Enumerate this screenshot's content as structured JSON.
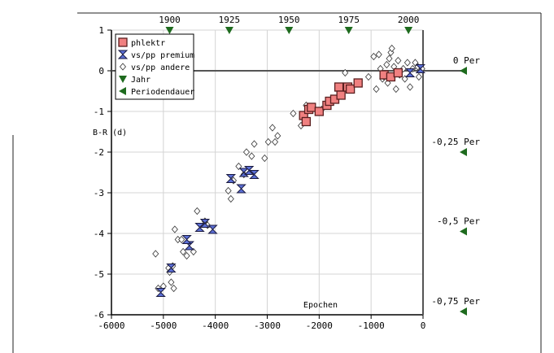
{
  "chart_data": {
    "type": "scatter",
    "xlabel": "Epochen",
    "ylabel": "B-R (d)",
    "xlim": [
      -6000,
      0
    ],
    "ylim": [
      -6,
      1
    ],
    "x_ticks": [
      -6000,
      -5000,
      -4000,
      -3000,
      -2000,
      -1000,
      0
    ],
    "x_tick_labels": [
      "-6000",
      "-5000",
      "-4000",
      "-3000",
      "-2000",
      "-1000",
      "0"
    ],
    "y_ticks": [
      1,
      0,
      -1,
      -2,
      -3,
      -4,
      -5,
      -6
    ],
    "y_tick_labels": [
      "1",
      "0",
      "-1",
      "-2",
      "-3",
      "-4",
      "-5",
      "-6"
    ],
    "legend_position": "top-left",
    "legend": [
      "phlektr",
      "vs/pp premium",
      "vs/pp andere",
      "Jahr",
      "Periodendauer"
    ],
    "colors": {
      "phlektr": "#f08080",
      "vs_pp_premium": "#5b6fd6",
      "vs_pp_andere": "#ffffff",
      "jahr": "#1e6b1e",
      "periodendauer": "#1e6b1e",
      "axis": "#000000"
    },
    "year_markers": [
      {
        "label": "1900",
        "epoch": -4880
      },
      {
        "label": "1925",
        "epoch": -3730
      },
      {
        "label": "1950",
        "epoch": -2580
      },
      {
        "label": "1975",
        "epoch": -1430
      },
      {
        "label": "2000",
        "epoch": -280
      }
    ],
    "period_markers": [
      {
        "label": "0 Per",
        "value": 0
      },
      {
        "label": "-0,25 Per",
        "value": -2
      },
      {
        "label": "-0,5 Per",
        "value": -3.95
      },
      {
        "label": "-0,75 Per",
        "value": -5.92
      }
    ],
    "series": [
      {
        "name": "phlektr",
        "marker": "square",
        "points": [
          [
            -2300,
            -1.1
          ],
          [
            -2250,
            -1.25
          ],
          [
            -2200,
            -0.95
          ],
          [
            -2150,
            -0.9
          ],
          [
            -2000,
            -1.0
          ],
          [
            -1850,
            -0.85
          ],
          [
            -1800,
            -0.75
          ],
          [
            -1700,
            -0.7
          ],
          [
            -1620,
            -0.4
          ],
          [
            -1580,
            -0.6
          ],
          [
            -1450,
            -0.4
          ],
          [
            -1400,
            -0.45
          ],
          [
            -1250,
            -0.3
          ],
          [
            -750,
            -0.1
          ],
          [
            -620,
            -0.15
          ],
          [
            -480,
            -0.05
          ]
        ]
      },
      {
        "name": "vs/pp premium",
        "marker": "hourglass",
        "points": [
          [
            -5050,
            -5.45
          ],
          [
            -4850,
            -4.85
          ],
          [
            -4500,
            -4.3
          ],
          [
            -4550,
            -4.15
          ],
          [
            -4300,
            -3.85
          ],
          [
            -4200,
            -3.75
          ],
          [
            -4050,
            -3.9
          ],
          [
            -3700,
            -2.65
          ],
          [
            -3500,
            -2.9
          ],
          [
            -3450,
            -2.5
          ],
          [
            -3350,
            -2.45
          ],
          [
            -3250,
            -2.55
          ],
          [
            -250,
            -0.05
          ],
          [
            -50,
            0.05
          ]
        ]
      },
      {
        "name": "vs/pp andere",
        "marker": "diamond",
        "points": [
          [
            -5150,
            -4.5
          ],
          [
            -5100,
            -5.35
          ],
          [
            -5000,
            -5.3
          ],
          [
            -4900,
            -4.85
          ],
          [
            -4880,
            -4.95
          ],
          [
            -4820,
            -4.8
          ],
          [
            -4850,
            -5.2
          ],
          [
            -4800,
            -5.35
          ],
          [
            -4780,
            -3.9
          ],
          [
            -4720,
            -4.15
          ],
          [
            -4650,
            -4.15
          ],
          [
            -4620,
            -4.45
          ],
          [
            -4550,
            -4.55
          ],
          [
            -4420,
            -4.45
          ],
          [
            -4350,
            -3.45
          ],
          [
            -4200,
            -3.7
          ],
          [
            -4150,
            -3.8
          ],
          [
            -3750,
            -2.95
          ],
          [
            -3700,
            -3.15
          ],
          [
            -3650,
            -2.7
          ],
          [
            -3550,
            -2.35
          ],
          [
            -3450,
            -2.55
          ],
          [
            -3400,
            -2.0
          ],
          [
            -3300,
            -2.1
          ],
          [
            -3250,
            -1.8
          ],
          [
            -3050,
            -2.15
          ],
          [
            -2980,
            -1.75
          ],
          [
            -2900,
            -1.4
          ],
          [
            -2850,
            -1.75
          ],
          [
            -2800,
            -1.6
          ],
          [
            -2500,
            -1.05
          ],
          [
            -2350,
            -1.35
          ],
          [
            -2250,
            -0.85
          ],
          [
            -1950,
            -0.95
          ],
          [
            -1500,
            -0.05
          ],
          [
            -1050,
            -0.15
          ],
          [
            -950,
            0.35
          ],
          [
            -900,
            -0.45
          ],
          [
            -850,
            0.4
          ],
          [
            -820,
            0.05
          ],
          [
            -780,
            -0.2
          ],
          [
            -750,
            -0.15
          ],
          [
            -700,
            0.15
          ],
          [
            -680,
            -0.3
          ],
          [
            -650,
            0.3
          ],
          [
            -620,
            0.45
          ],
          [
            -600,
            0.55
          ],
          [
            -560,
            0.1
          ],
          [
            -520,
            -0.45
          ],
          [
            -480,
            0.25
          ],
          [
            -450,
            -0.1
          ],
          [
            -380,
            0.05
          ],
          [
            -350,
            -0.2
          ],
          [
            -300,
            0.2
          ],
          [
            -250,
            -0.4
          ],
          [
            -200,
            0.05
          ],
          [
            -150,
            0.2
          ],
          [
            -100,
            0.1
          ],
          [
            -80,
            -0.15
          ],
          [
            -20,
            0.05
          ]
        ]
      }
    ]
  }
}
